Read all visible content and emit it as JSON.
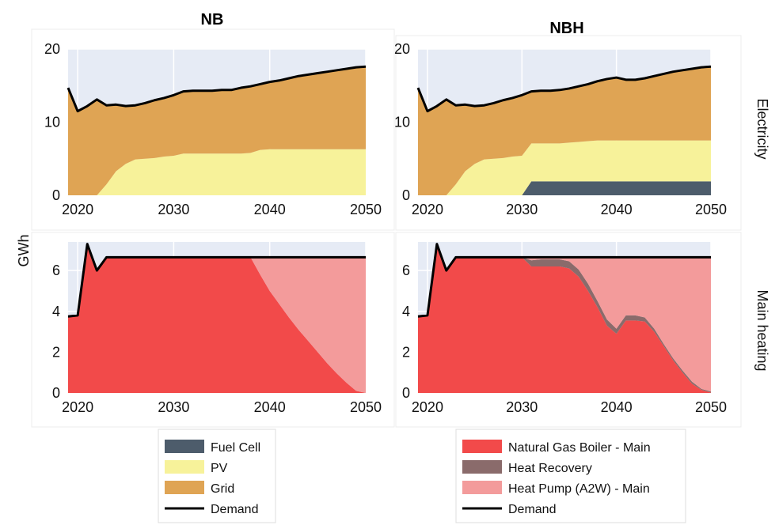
{
  "figure": {
    "y_axis_label": "GWh",
    "columns": [
      "NB",
      "NBH"
    ],
    "rows": [
      "Electricity",
      "Main heating"
    ]
  },
  "colors": {
    "plot_bg": "#e6ebf5",
    "fuel_cell": "#4d5c6b",
    "pv": "#f7f29a",
    "grid": "#dfa454",
    "natural_gas_boiler": "#f24a4a",
    "heat_recovery": "#8a6b6b",
    "heat_pump": "#f39b9b",
    "demand": "#000000"
  },
  "legends": [
    {
      "entries": [
        {
          "label": "Fuel Cell",
          "key": "fuel_cell",
          "kind": "patch"
        },
        {
          "label": "PV",
          "key": "pv",
          "kind": "patch"
        },
        {
          "label": "Grid",
          "key": "grid",
          "kind": "patch"
        },
        {
          "label": "Demand",
          "key": "demand",
          "kind": "line"
        }
      ]
    },
    {
      "entries": [
        {
          "label": "Natural Gas Boiler - Main",
          "key": "natural_gas_boiler",
          "kind": "patch"
        },
        {
          "label": "Heat Recovery",
          "key": "heat_recovery",
          "kind": "patch"
        },
        {
          "label": "Heat Pump (A2W) - Main",
          "key": "heat_pump",
          "kind": "patch"
        },
        {
          "label": "Demand",
          "key": "demand",
          "kind": "line"
        }
      ]
    }
  ],
  "chart_data": [
    {
      "type": "area",
      "title": "NB",
      "row": "Electricity",
      "xlim": [
        2019,
        2050
      ],
      "ylim": [
        0,
        20
      ],
      "xticks": [
        2020,
        2030,
        2040,
        2050
      ],
      "yticks": [
        0,
        10,
        20
      ],
      "x": [
        2019,
        2020,
        2021,
        2022,
        2023,
        2024,
        2025,
        2026,
        2027,
        2028,
        2029,
        2030,
        2031,
        2032,
        2033,
        2034,
        2035,
        2036,
        2037,
        2038,
        2039,
        2040,
        2041,
        2042,
        2043,
        2044,
        2045,
        2046,
        2047,
        2048,
        2049,
        2050
      ],
      "series": [
        {
          "name": "PV",
          "key": "pv",
          "values": [
            0,
            0,
            0,
            0,
            1.5,
            3.3,
            4.3,
            4.9,
            5.0,
            5.1,
            5.3,
            5.4,
            5.7,
            5.7,
            5.7,
            5.7,
            5.7,
            5.7,
            5.7,
            5.8,
            6.2,
            6.3,
            6.3,
            6.3,
            6.3,
            6.3,
            6.3,
            6.3,
            6.3,
            6.3,
            6.3,
            6.3
          ]
        },
        {
          "name": "Grid",
          "key": "grid",
          "values": [
            14.7,
            11.5,
            12.2,
            13.1,
            10.8,
            9.1,
            7.9,
            7.4,
            7.6,
            7.9,
            8.0,
            8.3,
            8.5,
            8.6,
            8.6,
            8.6,
            8.7,
            8.7,
            9.0,
            9.1,
            9.0,
            9.2,
            9.4,
            9.7,
            10.0,
            10.2,
            10.4,
            10.6,
            10.8,
            11.0,
            11.2,
            11.3
          ]
        }
      ],
      "demand": [
        14.7,
        11.5,
        12.2,
        13.1,
        12.3,
        12.4,
        12.2,
        12.3,
        12.6,
        13.0,
        13.3,
        13.7,
        14.2,
        14.3,
        14.3,
        14.3,
        14.4,
        14.4,
        14.7,
        14.9,
        15.2,
        15.5,
        15.7,
        16.0,
        16.3,
        16.5,
        16.7,
        16.9,
        17.1,
        17.3,
        17.5,
        17.6
      ]
    },
    {
      "type": "area",
      "title": "NBH",
      "row": "Electricity",
      "xlim": [
        2019,
        2050
      ],
      "ylim": [
        0,
        20
      ],
      "xticks": [
        2020,
        2030,
        2040,
        2050
      ],
      "yticks": [
        0,
        10,
        20
      ],
      "x": [
        2019,
        2020,
        2021,
        2022,
        2023,
        2024,
        2025,
        2026,
        2027,
        2028,
        2029,
        2030,
        2031,
        2032,
        2033,
        2034,
        2035,
        2036,
        2037,
        2038,
        2039,
        2040,
        2041,
        2042,
        2043,
        2044,
        2045,
        2046,
        2047,
        2048,
        2049,
        2050
      ],
      "series": [
        {
          "name": "Fuel Cell",
          "key": "fuel_cell",
          "values": [
            0,
            0,
            0,
            0,
            0,
            0,
            0,
            0,
            0,
            0,
            0,
            0,
            1.9,
            1.9,
            1.9,
            1.9,
            1.9,
            1.9,
            1.9,
            1.9,
            1.9,
            1.9,
            1.9,
            1.9,
            1.9,
            1.9,
            1.9,
            1.9,
            1.9,
            1.9,
            1.9,
            1.9
          ]
        },
        {
          "name": "PV",
          "key": "pv",
          "values": [
            0,
            0,
            0,
            0,
            1.5,
            3.3,
            4.3,
            4.9,
            5.0,
            5.1,
            5.3,
            5.4,
            5.2,
            5.2,
            5.2,
            5.2,
            5.3,
            5.4,
            5.5,
            5.6,
            5.6,
            5.6,
            5.6,
            5.6,
            5.6,
            5.6,
            5.6,
            5.6,
            5.6,
            5.6,
            5.6,
            5.6
          ]
        },
        {
          "name": "Grid",
          "key": "grid",
          "values": [
            14.7,
            11.5,
            12.2,
            13.1,
            10.8,
            9.1,
            7.9,
            7.4,
            7.6,
            7.9,
            8.0,
            8.3,
            7.1,
            7.2,
            7.2,
            7.3,
            7.4,
            7.6,
            7.8,
            8.1,
            8.4,
            8.6,
            8.3,
            8.3,
            8.5,
            8.8,
            9.1,
            9.4,
            9.6,
            9.8,
            10.0,
            10.1
          ]
        }
      ],
      "demand": [
        14.7,
        11.5,
        12.2,
        13.1,
        12.3,
        12.4,
        12.2,
        12.3,
        12.6,
        13.0,
        13.3,
        13.7,
        14.2,
        14.3,
        14.3,
        14.4,
        14.6,
        14.9,
        15.2,
        15.6,
        15.9,
        16.1,
        15.8,
        15.8,
        16.0,
        16.3,
        16.6,
        16.9,
        17.1,
        17.3,
        17.5,
        17.6
      ]
    },
    {
      "type": "area",
      "title": "NB",
      "row": "Main heating",
      "xlim": [
        2019,
        2050
      ],
      "ylim": [
        0,
        7.4
      ],
      "xticks": [
        2020,
        2030,
        2040,
        2050
      ],
      "yticks": [
        0,
        2,
        4,
        6
      ],
      "x": [
        2019,
        2020,
        2021,
        2022,
        2023,
        2024,
        2025,
        2026,
        2027,
        2028,
        2029,
        2030,
        2031,
        2032,
        2033,
        2034,
        2035,
        2036,
        2037,
        2038,
        2039,
        2040,
        2041,
        2042,
        2043,
        2044,
        2045,
        2046,
        2047,
        2048,
        2049,
        2050
      ],
      "series": [
        {
          "name": "Natural Gas Boiler - Main",
          "key": "natural_gas_boiler",
          "values": [
            3.75,
            3.8,
            7.3,
            6.0,
            6.65,
            6.65,
            6.65,
            6.65,
            6.65,
            6.65,
            6.65,
            6.65,
            6.65,
            6.65,
            6.65,
            6.65,
            6.65,
            6.65,
            6.65,
            6.65,
            5.8,
            5.0,
            4.35,
            3.7,
            3.1,
            2.55,
            2.0,
            1.45,
            0.95,
            0.5,
            0.1,
            0
          ]
        },
        {
          "name": "Heat Pump (A2W) - Main",
          "key": "heat_pump",
          "values": [
            0,
            0,
            0,
            0,
            0,
            0,
            0,
            0,
            0,
            0,
            0,
            0,
            0,
            0,
            0,
            0,
            0,
            0,
            0,
            0,
            0.85,
            1.65,
            2.3,
            2.95,
            3.55,
            4.1,
            4.65,
            5.2,
            5.7,
            6.15,
            6.55,
            6.65
          ]
        }
      ],
      "demand": [
        3.75,
        3.8,
        7.3,
        6.0,
        6.65,
        6.65,
        6.65,
        6.65,
        6.65,
        6.65,
        6.65,
        6.65,
        6.65,
        6.65,
        6.65,
        6.65,
        6.65,
        6.65,
        6.65,
        6.65,
        6.65,
        6.65,
        6.65,
        6.65,
        6.65,
        6.65,
        6.65,
        6.65,
        6.65,
        6.65,
        6.65,
        6.65
      ]
    },
    {
      "type": "area",
      "title": "NBH",
      "row": "Main heating",
      "xlim": [
        2019,
        2050
      ],
      "ylim": [
        0,
        7.4
      ],
      "xticks": [
        2020,
        2030,
        2040,
        2050
      ],
      "yticks": [
        0,
        2,
        4,
        6
      ],
      "x": [
        2019,
        2020,
        2021,
        2022,
        2023,
        2024,
        2025,
        2026,
        2027,
        2028,
        2029,
        2030,
        2031,
        2032,
        2033,
        2034,
        2035,
        2036,
        2037,
        2038,
        2039,
        2040,
        2041,
        2042,
        2043,
        2044,
        2045,
        2046,
        2047,
        2048,
        2049,
        2050
      ],
      "series": [
        {
          "name": "Natural Gas Boiler - Main",
          "key": "natural_gas_boiler",
          "values": [
            3.75,
            3.8,
            7.3,
            6.0,
            6.65,
            6.65,
            6.65,
            6.65,
            6.65,
            6.65,
            6.65,
            6.65,
            6.2,
            6.2,
            6.2,
            6.2,
            6.1,
            5.7,
            5.0,
            4.2,
            3.3,
            2.9,
            3.55,
            3.55,
            3.5,
            3.0,
            2.3,
            1.6,
            1.0,
            0.45,
            0.15,
            0.02
          ]
        },
        {
          "name": "Heat Recovery",
          "key": "heat_recovery",
          "values": [
            0,
            0,
            0,
            0,
            0,
            0,
            0,
            0,
            0,
            0,
            0,
            0,
            0.3,
            0.35,
            0.35,
            0.35,
            0.35,
            0.35,
            0.35,
            0.3,
            0.3,
            0.25,
            0.25,
            0.25,
            0.2,
            0.15,
            0.1,
            0.1,
            0.1,
            0.1,
            0.05,
            0.05
          ]
        },
        {
          "name": "Heat Pump (A2W) - Main",
          "key": "heat_pump",
          "values": [
            0,
            0,
            0,
            0,
            0,
            0,
            0,
            0,
            0,
            0,
            0,
            0,
            0.15,
            0.1,
            0.1,
            0.1,
            0.2,
            0.6,
            1.3,
            2.15,
            3.05,
            3.5,
            2.85,
            2.85,
            2.95,
            3.5,
            4.25,
            4.95,
            5.55,
            6.1,
            6.45,
            6.58
          ]
        }
      ],
      "demand": [
        3.75,
        3.8,
        7.3,
        6.0,
        6.65,
        6.65,
        6.65,
        6.65,
        6.65,
        6.65,
        6.65,
        6.65,
        6.65,
        6.65,
        6.65,
        6.65,
        6.65,
        6.65,
        6.65,
        6.65,
        6.65,
        6.65,
        6.65,
        6.65,
        6.65,
        6.65,
        6.65,
        6.65,
        6.65,
        6.65,
        6.65,
        6.65
      ]
    }
  ]
}
